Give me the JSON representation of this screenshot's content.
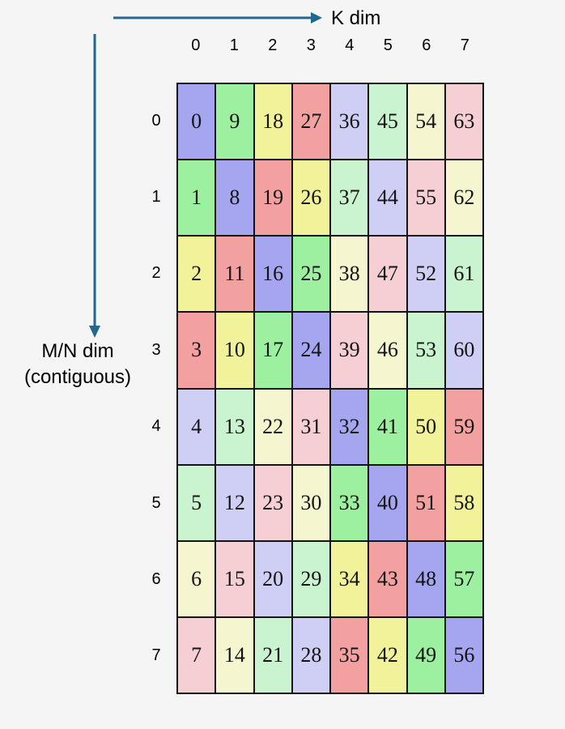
{
  "axes": {
    "k_label": "K dim",
    "mn_label_line1": "M/N dim",
    "mn_label_line2": "(contiguous)",
    "arrow_color": "#21678f"
  },
  "col_headers": [
    "0",
    "1",
    "2",
    "3",
    "4",
    "5",
    "6",
    "7"
  ],
  "row_headers": [
    "0",
    "1",
    "2",
    "3",
    "4",
    "5",
    "6",
    "7"
  ],
  "colors": {
    "purple": "#a5a5f0",
    "green": "#9df09f",
    "yellow": "#f2f29b",
    "red": "#f2a0a0",
    "light_purple": "#cfcff5",
    "light_green": "#caf3d0",
    "light_yellow": "#f5f5d0",
    "light_pink": "#f6cfd4"
  },
  "grid": {
    "values": [
      [
        0,
        9,
        18,
        27,
        36,
        45,
        54,
        63
      ],
      [
        1,
        8,
        19,
        26,
        37,
        44,
        55,
        62
      ],
      [
        2,
        11,
        16,
        25,
        38,
        47,
        52,
        61
      ],
      [
        3,
        10,
        17,
        24,
        39,
        46,
        53,
        60
      ],
      [
        4,
        13,
        22,
        31,
        32,
        41,
        50,
        59
      ],
      [
        5,
        12,
        23,
        30,
        33,
        40,
        51,
        58
      ],
      [
        6,
        15,
        20,
        29,
        34,
        43,
        48,
        57
      ],
      [
        7,
        14,
        21,
        28,
        35,
        42,
        49,
        56
      ]
    ],
    "cell_colors": [
      [
        "purple",
        "green",
        "yellow",
        "red",
        "light_purple",
        "light_green",
        "light_yellow",
        "light_pink"
      ],
      [
        "green",
        "purple",
        "red",
        "yellow",
        "light_green",
        "light_purple",
        "light_pink",
        "light_yellow"
      ],
      [
        "yellow",
        "red",
        "purple",
        "green",
        "light_yellow",
        "light_pink",
        "light_purple",
        "light_green"
      ],
      [
        "red",
        "yellow",
        "green",
        "purple",
        "light_pink",
        "light_yellow",
        "light_green",
        "light_purple"
      ],
      [
        "light_purple",
        "light_green",
        "light_yellow",
        "light_pink",
        "purple",
        "green",
        "yellow",
        "red"
      ],
      [
        "light_green",
        "light_purple",
        "light_pink",
        "light_yellow",
        "green",
        "purple",
        "red",
        "yellow"
      ],
      [
        "light_yellow",
        "light_pink",
        "light_purple",
        "light_green",
        "yellow",
        "red",
        "purple",
        "green"
      ],
      [
        "light_pink",
        "light_yellow",
        "light_green",
        "light_purple",
        "red",
        "yellow",
        "green",
        "purple"
      ]
    ]
  }
}
